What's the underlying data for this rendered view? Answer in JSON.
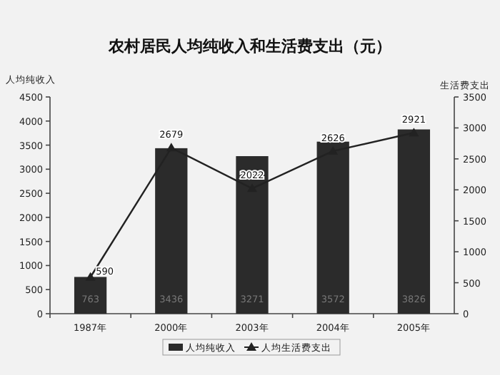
{
  "chart_data": {
    "type": "bar",
    "title": "农村居民人均纯收入和生活费支出（元）",
    "ylabel": "人均纯收入",
    "y2label": "生活费支出",
    "categories": [
      "1987年",
      "2000年",
      "2003年",
      "2004年",
      "2005年"
    ],
    "series": [
      {
        "name": "人均纯收入",
        "color": "#2b2b2b",
        "values": [
          763,
          3436,
          3271,
          3572,
          3826
        ]
      },
      {
        "name": "人均生活费支出",
        "type": "line",
        "axis": "y2",
        "color": "#222222",
        "marker": "triangle",
        "values": [
          590,
          2679,
          2022,
          2626,
          2921
        ]
      }
    ],
    "ylim": [
      0,
      4500
    ],
    "yticks": [
      0,
      500,
      1000,
      1500,
      2000,
      2500,
      3000,
      3500,
      4000,
      4500
    ],
    "y2lim": [
      0,
      3500
    ],
    "y2ticks": [
      0,
      500,
      1000,
      1500,
      2000,
      2500,
      3000,
      3500
    ],
    "data_labels": true,
    "legend": "bottom",
    "grid": false
  }
}
